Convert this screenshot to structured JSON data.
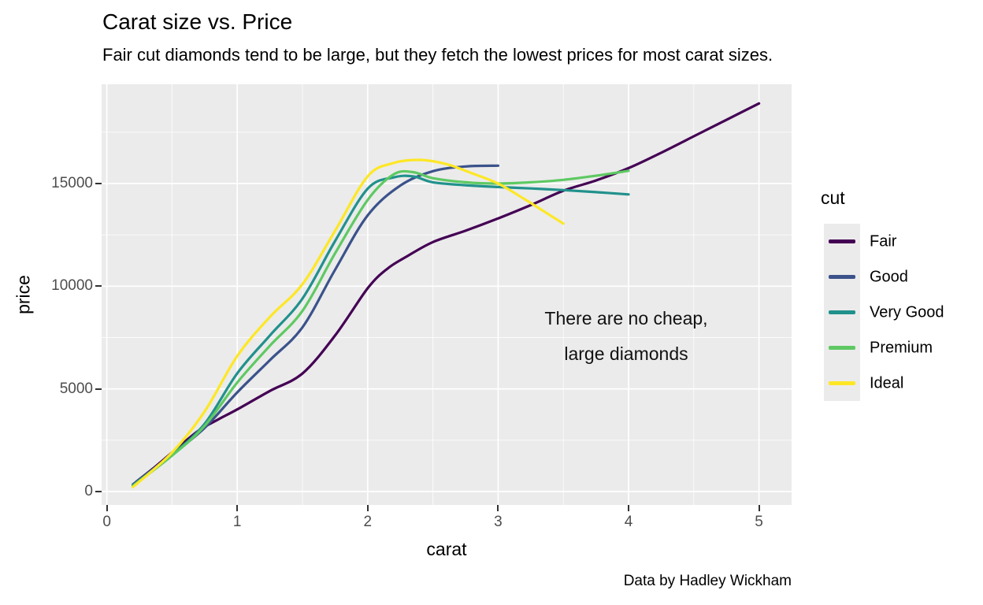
{
  "header": {
    "title": "Carat size vs. Price",
    "subtitle": "Fair cut diamonds tend to be large, but they fetch the lowest prices for most carat sizes."
  },
  "caption": "Data by Hadley Wickham",
  "annotation": {
    "lines": [
      "There are no cheap,",
      "large diamonds"
    ]
  },
  "axes": {
    "x_title": "carat",
    "y_title": "price",
    "x_tick_labels": [
      "0",
      "1",
      "2",
      "3",
      "4",
      "5"
    ],
    "y_tick_labels": [
      "0",
      "5000",
      "10000",
      "15000"
    ]
  },
  "legend": {
    "title": "cut",
    "items": [
      {
        "label": "Fair",
        "color": "#440154"
      },
      {
        "label": "Good",
        "color": "#3B528B"
      },
      {
        "label": "Very Good",
        "color": "#21918C"
      },
      {
        "label": "Premium",
        "color": "#5EC962"
      },
      {
        "label": "Ideal",
        "color": "#FDE725"
      }
    ]
  },
  "chart_data": {
    "type": "line",
    "title": "Carat size vs. Price",
    "subtitle": "Fair cut diamonds tend to be large, but they fetch the lowest prices for most carat sizes.",
    "caption": "Data by Hadley Wickham",
    "xlabel": "carat",
    "ylabel": "price",
    "xlim": [
      -0.04,
      5.25
    ],
    "ylim": [
      -652,
      19833
    ],
    "x_ticks": [
      0,
      1,
      2,
      3,
      4,
      5
    ],
    "y_ticks": [
      0,
      5000,
      10000,
      15000
    ],
    "x_minor_ticks": [
      0.5,
      1.5,
      2.5,
      3.5,
      4.5
    ],
    "y_minor_ticks": [
      2500,
      7500,
      12500,
      17500
    ],
    "grid": true,
    "legend_position": "right",
    "legend_title": "cut",
    "panel_background": "#EBEBEB",
    "annotation_text": "There are no cheap, large diamonds",
    "annotation_xy": [
      3.05,
      8200
    ],
    "series": [
      {
        "name": "Fair",
        "color": "#440154",
        "points": [
          [
            0.22,
            450
          ],
          [
            0.35,
            1100
          ],
          [
            0.5,
            1900
          ],
          [
            0.7,
            2950
          ],
          [
            0.85,
            3500
          ],
          [
            1.0,
            4000
          ],
          [
            1.25,
            4900
          ],
          [
            1.5,
            5750
          ],
          [
            1.75,
            7600
          ],
          [
            2.0,
            9900
          ],
          [
            2.15,
            10850
          ],
          [
            2.3,
            11450
          ],
          [
            2.5,
            12150
          ],
          [
            2.75,
            12700
          ],
          [
            3.0,
            13300
          ],
          [
            3.25,
            13950
          ],
          [
            3.5,
            14650
          ],
          [
            3.75,
            15150
          ],
          [
            4.0,
            15750
          ],
          [
            4.25,
            16500
          ],
          [
            4.5,
            17300
          ],
          [
            4.75,
            18100
          ],
          [
            5.0,
            18900
          ]
        ]
      },
      {
        "name": "Good",
        "color": "#3B528B",
        "points": [
          [
            0.2,
            350
          ],
          [
            0.5,
            1800
          ],
          [
            0.75,
            3100
          ],
          [
            1.0,
            4830
          ],
          [
            1.25,
            6400
          ],
          [
            1.5,
            8000
          ],
          [
            1.75,
            10800
          ],
          [
            2.0,
            13450
          ],
          [
            2.25,
            14900
          ],
          [
            2.5,
            15600
          ],
          [
            2.75,
            15830
          ],
          [
            3.0,
            15870
          ]
        ]
      },
      {
        "name": "Very Good",
        "color": "#21918C",
        "points": [
          [
            0.2,
            300
          ],
          [
            0.5,
            1800
          ],
          [
            0.75,
            3300
          ],
          [
            1.0,
            5760
          ],
          [
            1.25,
            7600
          ],
          [
            1.5,
            9400
          ],
          [
            1.75,
            12200
          ],
          [
            2.0,
            14750
          ],
          [
            2.2,
            15300
          ],
          [
            2.35,
            15350
          ],
          [
            2.5,
            15060
          ],
          [
            2.75,
            14920
          ],
          [
            3.0,
            14830
          ],
          [
            3.25,
            14760
          ],
          [
            3.5,
            14680
          ],
          [
            3.75,
            14580
          ],
          [
            4.0,
            14470
          ]
        ]
      },
      {
        "name": "Premium",
        "color": "#5EC962",
        "points": [
          [
            0.2,
            280
          ],
          [
            0.5,
            1750
          ],
          [
            0.75,
            3200
          ],
          [
            1.0,
            5310
          ],
          [
            1.25,
            7100
          ],
          [
            1.5,
            8800
          ],
          [
            1.75,
            11600
          ],
          [
            2.0,
            14200
          ],
          [
            2.2,
            15450
          ],
          [
            2.35,
            15550
          ],
          [
            2.5,
            15260
          ],
          [
            2.75,
            15060
          ],
          [
            3.0,
            15000
          ],
          [
            3.25,
            15060
          ],
          [
            3.5,
            15180
          ],
          [
            3.75,
            15380
          ],
          [
            4.0,
            15620
          ]
        ]
      },
      {
        "name": "Ideal",
        "color": "#FDE725",
        "points": [
          [
            0.2,
            220
          ],
          [
            0.5,
            1900
          ],
          [
            0.75,
            3900
          ],
          [
            1.0,
            6600
          ],
          [
            1.25,
            8500
          ],
          [
            1.5,
            10100
          ],
          [
            1.75,
            12700
          ],
          [
            2.0,
            15350
          ],
          [
            2.2,
            16000
          ],
          [
            2.4,
            16150
          ],
          [
            2.6,
            15950
          ],
          [
            2.8,
            15500
          ],
          [
            3.0,
            15000
          ],
          [
            3.2,
            14250
          ],
          [
            3.35,
            13650
          ],
          [
            3.5,
            13050
          ]
        ]
      }
    ]
  }
}
